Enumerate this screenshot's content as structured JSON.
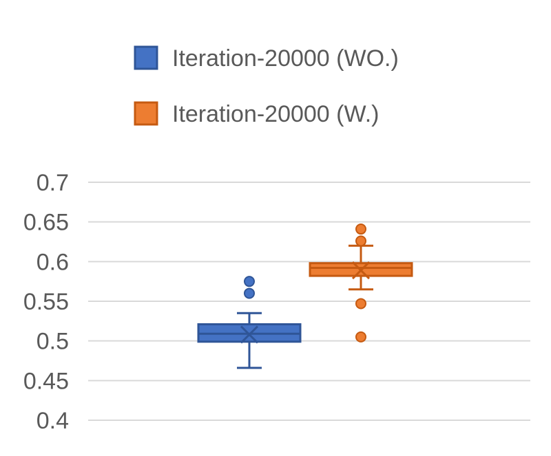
{
  "chart_data": {
    "type": "box",
    "title": "",
    "xlabel": "",
    "ylabel": "",
    "ylim": [
      0.4,
      0.7
    ],
    "yticks": [
      "0.7",
      "0.65",
      "0.6",
      "0.55",
      "0.5",
      "0.45",
      "0.4"
    ],
    "grid": true,
    "legend_position": "top",
    "series": [
      {
        "name": "Iteration-20000 (WO.)",
        "color": "#4472C4",
        "border_color": "#2F5597",
        "whisker_low": 0.466,
        "q1": 0.499,
        "median": 0.509,
        "q3": 0.521,
        "whisker_high": 0.535,
        "mean": 0.508,
        "outliers": [
          0.56,
          0.575
        ]
      },
      {
        "name": "Iteration-20000 (W.)",
        "color": "#ED7D31",
        "border_color": "#C55A11",
        "whisker_low": 0.565,
        "q1": 0.582,
        "median": 0.592,
        "q3": 0.598,
        "whisker_high": 0.62,
        "mean": 0.589,
        "outliers": [
          0.505,
          0.547,
          0.626,
          0.641
        ]
      }
    ]
  }
}
